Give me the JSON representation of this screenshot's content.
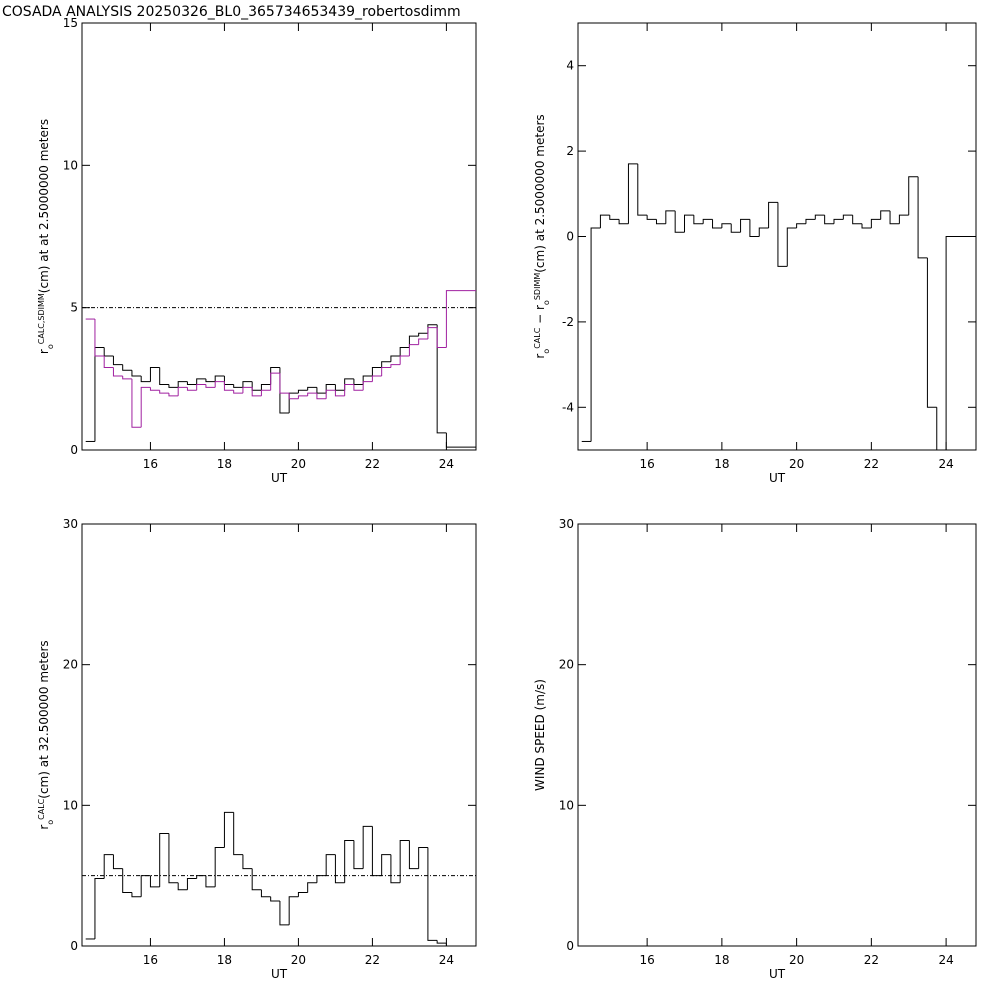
{
  "title": "COSADA ANALYSIS 20250326_BL0_365734653439_robertosdimm",
  "chart_data": [
    {
      "type": "line",
      "steps": true,
      "xlabel": "UT",
      "ylabel_parts": [
        {
          "text": "r"
        },
        {
          "text": "o",
          "pos": "sub"
        },
        {
          "text": "CALC,SDIMM",
          "pos": "sup"
        },
        {
          "text": "(cm) at  at 2.5000000 meters"
        }
      ],
      "xlim": [
        14.15,
        24.8
      ],
      "xticks": [
        16,
        18,
        20,
        22,
        24
      ],
      "ylim": [
        0,
        15
      ],
      "yticks": [
        0,
        5,
        10,
        15
      ],
      "hline": 5,
      "x": [
        14.25,
        14.5,
        14.75,
        15,
        15.25,
        15.5,
        15.75,
        16,
        16.25,
        16.5,
        16.75,
        17,
        17.25,
        17.5,
        17.75,
        18,
        18.25,
        18.5,
        18.75,
        19,
        19.25,
        19.5,
        19.75,
        20,
        20.25,
        20.5,
        20.75,
        21,
        21.25,
        21.5,
        21.75,
        22,
        22.25,
        22.5,
        22.75,
        23,
        23.25,
        23.5,
        23.75,
        24
      ],
      "series": [
        {
          "color": "#000000",
          "values": [
            0.3,
            3.6,
            3.3,
            3.0,
            2.8,
            2.6,
            2.4,
            2.9,
            2.3,
            2.2,
            2.4,
            2.3,
            2.5,
            2.4,
            2.6,
            2.3,
            2.2,
            2.4,
            2.1,
            2.3,
            2.9,
            1.3,
            2.0,
            2.1,
            2.2,
            2.0,
            2.3,
            2.1,
            2.5,
            2.3,
            2.6,
            2.9,
            3.1,
            3.3,
            3.6,
            4.0,
            4.1,
            4.4,
            0.6,
            0.1
          ]
        },
        {
          "color": "#a020a0",
          "values": [
            4.6,
            3.3,
            2.9,
            2.6,
            2.5,
            0.8,
            2.2,
            2.1,
            2.0,
            1.9,
            2.2,
            2.1,
            2.3,
            2.2,
            2.4,
            2.1,
            2.0,
            2.2,
            1.9,
            2.1,
            2.7,
            2.0,
            1.8,
            1.9,
            2.0,
            1.8,
            2.1,
            1.9,
            2.3,
            2.1,
            2.4,
            2.6,
            2.9,
            3.0,
            3.3,
            3.7,
            3.9,
            4.3,
            3.6,
            5.6
          ]
        }
      ]
    },
    {
      "type": "line",
      "steps": true,
      "xlabel": "UT",
      "ylabel_parts": [
        {
          "text": "r"
        },
        {
          "text": "o",
          "pos": "sub"
        },
        {
          "text": "CALC",
          "pos": "sup"
        },
        {
          "text": " − r"
        },
        {
          "text": "o",
          "pos": "sub"
        },
        {
          "text": "SDIMM",
          "pos": "sup"
        },
        {
          "text": "(cm) at 2.5000000 meters"
        }
      ],
      "xlim": [
        14.15,
        24.8
      ],
      "xticks": [
        16,
        18,
        20,
        22,
        24
      ],
      "ylim": [
        -5,
        5
      ],
      "yticks": [
        -4,
        -2,
        0,
        2,
        4
      ],
      "x": [
        14.25,
        14.5,
        14.75,
        15,
        15.25,
        15.5,
        15.75,
        16,
        16.25,
        16.5,
        16.75,
        17,
        17.25,
        17.5,
        17.75,
        18,
        18.25,
        18.5,
        18.75,
        19,
        19.25,
        19.5,
        19.75,
        20,
        20.25,
        20.5,
        20.75,
        21,
        21.25,
        21.5,
        21.75,
        22,
        22.25,
        22.5,
        22.75,
        23,
        23.25,
        23.5,
        23.75,
        24
      ],
      "series": [
        {
          "color": "#000000",
          "values": [
            -4.8,
            0.2,
            0.5,
            0.4,
            0.3,
            1.7,
            0.5,
            0.4,
            0.3,
            0.6,
            0.1,
            0.5,
            0.3,
            0.4,
            0.2,
            0.3,
            0.1,
            0.4,
            0.0,
            0.2,
            0.8,
            -0.7,
            0.2,
            0.3,
            0.4,
            0.5,
            0.3,
            0.4,
            0.5,
            0.3,
            0.2,
            0.4,
            0.6,
            0.3,
            0.5,
            1.4,
            -0.5,
            -4.0,
            -5,
            0
          ]
        }
      ]
    },
    {
      "type": "line",
      "steps": true,
      "xlabel": "UT",
      "ylabel_parts": [
        {
          "text": "r"
        },
        {
          "text": "o",
          "pos": "sub"
        },
        {
          "text": "CALC",
          "pos": "sup"
        },
        {
          "text": "(cm) at 32.500000 meters"
        }
      ],
      "xlim": [
        14.15,
        24.8
      ],
      "xticks": [
        16,
        18,
        20,
        22,
        24
      ],
      "ylim": [
        0,
        30
      ],
      "yticks": [
        0,
        10,
        20,
        30
      ],
      "hline": 5,
      "x": [
        14.25,
        14.5,
        14.75,
        15,
        15.25,
        15.5,
        15.75,
        16,
        16.25,
        16.5,
        16.75,
        17,
        17.25,
        17.5,
        17.75,
        18,
        18.25,
        18.5,
        18.75,
        19,
        19.25,
        19.5,
        19.75,
        20,
        20.25,
        20.5,
        20.75,
        21,
        21.25,
        21.5,
        21.75,
        22,
        22.25,
        22.5,
        22.75,
        23,
        23.25,
        23.5,
        23.75,
        24
      ],
      "series": [
        {
          "color": "#000000",
          "values": [
            0.5,
            4.8,
            6.5,
            5.5,
            3.8,
            3.5,
            5.0,
            4.2,
            8.0,
            4.5,
            4.0,
            4.8,
            5.0,
            4.2,
            7.0,
            9.5,
            6.5,
            5.5,
            4.0,
            3.5,
            3.2,
            1.5,
            3.5,
            3.8,
            4.5,
            5.0,
            6.5,
            4.5,
            7.5,
            5.5,
            8.5,
            5.0,
            6.5,
            4.5,
            7.5,
            5.5,
            7.0,
            0.4,
            0.2,
            0
          ]
        }
      ]
    },
    {
      "type": "line",
      "steps": true,
      "xlabel": "UT",
      "ylabel_parts": [
        {
          "text": "WIND SPEED (m/s)"
        }
      ],
      "xlim": [
        14.15,
        24.8
      ],
      "xticks": [
        16,
        18,
        20,
        22,
        24
      ],
      "ylim": [
        0,
        30
      ],
      "yticks": [
        0,
        10,
        20,
        30
      ],
      "x": [],
      "series": []
    }
  ]
}
